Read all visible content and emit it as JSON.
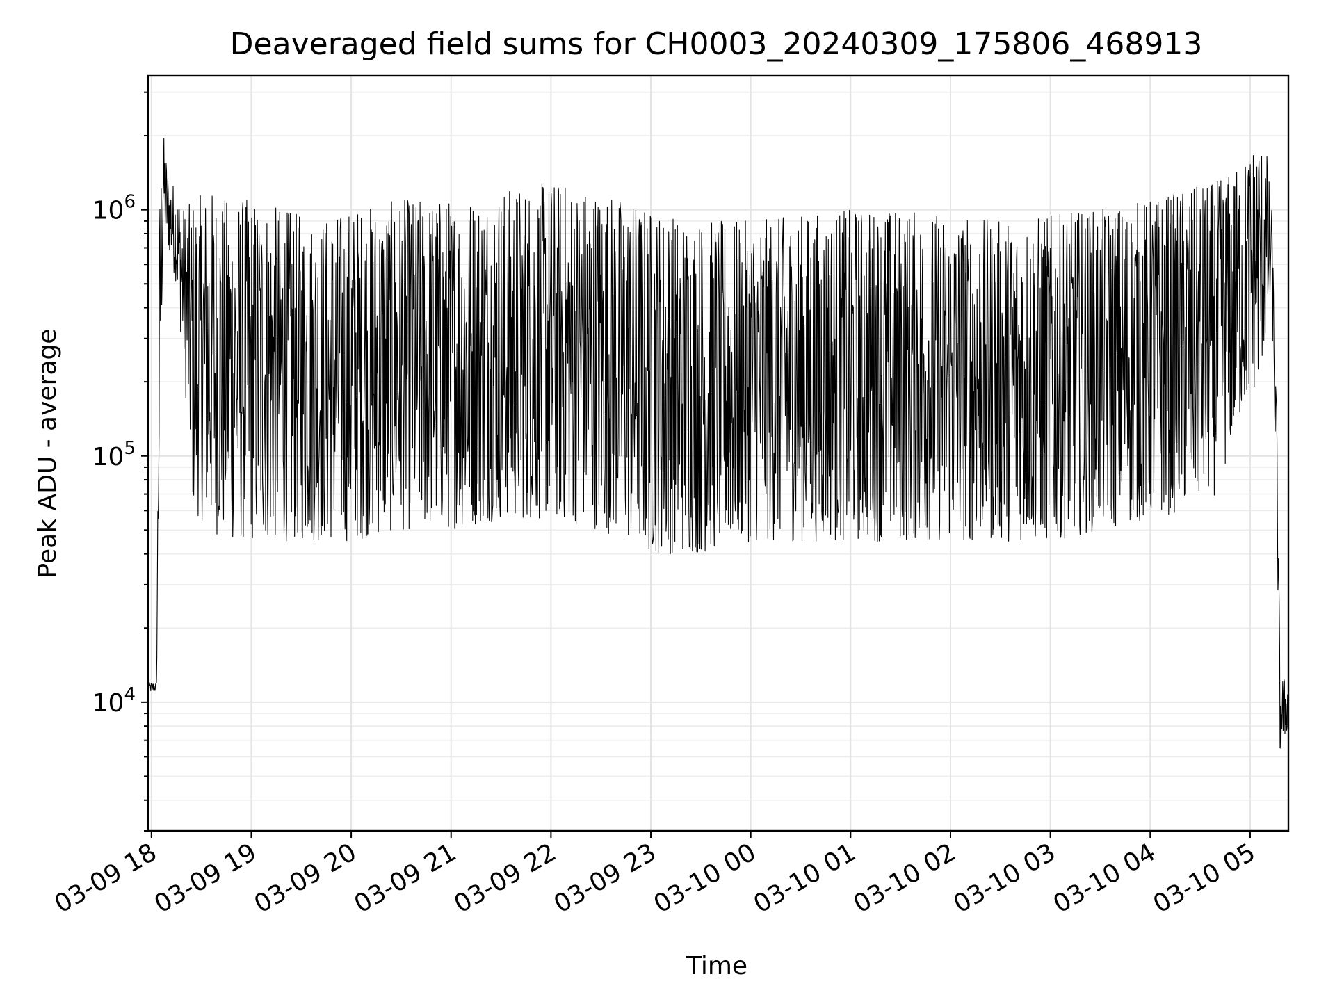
{
  "colors": {
    "series": "#000000",
    "grid": "#e4e4e4",
    "background": "#ffffff"
  },
  "chart_data": {
    "type": "line",
    "title": "Deaveraged field sums for CH0003_20240309_175806_468913",
    "xlabel": "Time",
    "ylabel": "Peak ADU - average",
    "yscale": "log",
    "grid": true,
    "legend": "none",
    "xlim": [
      "2024-03-09 17:58",
      "2024-03-10 05:23"
    ],
    "ylim": [
      3000,
      3500000
    ],
    "x_ticks": [
      "03-09 18",
      "03-09 19",
      "03-09 20",
      "03-09 21",
      "03-09 22",
      "03-09 23",
      "03-10 00",
      "03-10 01",
      "03-10 02",
      "03-10 03",
      "03-10 04",
      "03-10 05"
    ],
    "y_ticks": [
      {
        "value": 10000,
        "base": "10",
        "exp": "4"
      },
      {
        "value": 100000,
        "base": "10",
        "exp": "5"
      },
      {
        "value": 1000000,
        "base": "10",
        "exp": "6"
      }
    ],
    "series": [
      {
        "color": "#000000",
        "envelope": {
          "x": [
            "2024-03-09 17:58",
            "2024-03-09 18:03",
            "2024-03-09 18:05",
            "2024-03-09 18:07",
            "2024-03-09 18:10",
            "2024-03-09 18:15",
            "2024-03-09 18:20",
            "2024-03-09 18:25",
            "2024-03-09 18:35",
            "2024-03-09 18:45",
            "2024-03-09 19:00",
            "2024-03-09 19:20",
            "2024-03-09 19:40",
            "2024-03-09 20:00",
            "2024-03-09 20:30",
            "2024-03-09 21:00",
            "2024-03-09 21:30",
            "2024-03-09 22:00",
            "2024-03-09 22:30",
            "2024-03-09 23:00",
            "2024-03-09 23:30",
            "2024-03-10 00:00",
            "2024-03-10 00:30",
            "2024-03-10 01:00",
            "2024-03-10 01:30",
            "2024-03-10 02:00",
            "2024-03-10 02:30",
            "2024-03-10 03:00",
            "2024-03-10 03:30",
            "2024-03-10 04:00",
            "2024-03-10 04:20",
            "2024-03-10 04:40",
            "2024-03-10 04:55",
            "2024-03-10 05:05",
            "2024-03-10 05:10",
            "2024-03-10 05:13",
            "2024-03-10 05:16",
            "2024-03-10 05:18",
            "2024-03-10 05:23"
          ],
          "high": [
            12000,
            12000,
            1200000,
            2100000,
            1400000,
            1200000,
            1000000,
            1100000,
            1200000,
            1100000,
            1100000,
            1000000,
            900000,
            1000000,
            1100000,
            1100000,
            1200000,
            1300000,
            1200000,
            1000000,
            900000,
            900000,
            950000,
            1000000,
            1000000,
            950000,
            900000,
            950000,
            1000000,
            1100000,
            1200000,
            1300000,
            1500000,
            2000000,
            1700000,
            1000000,
            150000,
            13000,
            12000
          ],
          "low": [
            11000,
            11000,
            100000,
            800000,
            700000,
            500000,
            200000,
            60000,
            50000,
            45000,
            45000,
            45000,
            45000,
            45000,
            50000,
            50000,
            55000,
            55000,
            50000,
            40000,
            40000,
            45000,
            45000,
            45000,
            45000,
            45000,
            45000,
            45000,
            50000,
            55000,
            60000,
            70000,
            150000,
            200000,
            300000,
            400000,
            60000,
            6000,
            8000
          ]
        }
      }
    ]
  }
}
